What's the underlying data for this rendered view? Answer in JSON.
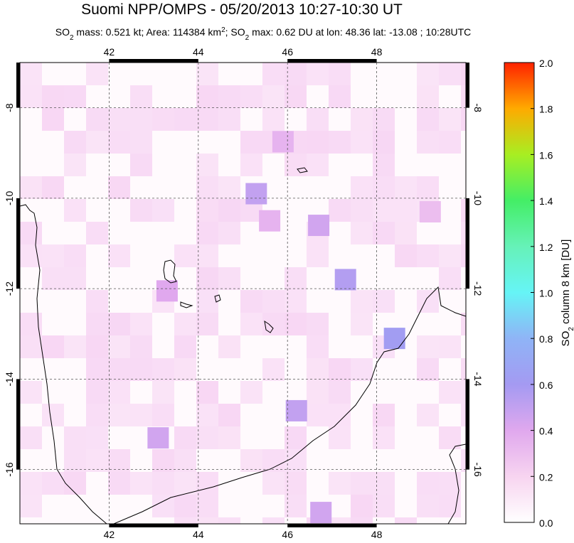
{
  "title": "Suomi NPP/OMPS - 05/20/2013 10:27-10:30 UT",
  "subtitle": [
    "SO",
    "2",
    " mass: 0.521 kt; Area: 114384 km",
    "2",
    "; SO",
    "2",
    " max: 0.62 DU at lon: 48.36 lat: -13.08 ; 10:28UTC"
  ],
  "map": {
    "xlim": [
      40,
      50
    ],
    "ylim": [
      -17.2,
      -7
    ],
    "xticks": [
      42,
      44,
      46,
      48
    ],
    "yticks": [
      -8,
      -10,
      -12,
      -14,
      -16
    ],
    "cells": [
      {
        "lon": 47.3,
        "lat": -11.8,
        "value": 0.55
      },
      {
        "lon": 48.4,
        "lat": -13.1,
        "value": 0.62
      },
      {
        "lon": 45.3,
        "lat": -9.9,
        "value": 0.5
      },
      {
        "lon": 46.7,
        "lat": -10.6,
        "value": 0.45
      },
      {
        "lon": 46.2,
        "lat": -14.7,
        "value": 0.5
      },
      {
        "lon": 43.1,
        "lat": -15.3,
        "value": 0.45
      },
      {
        "lon": 46.75,
        "lat": -16.95,
        "value": 0.45
      },
      {
        "lon": 43.3,
        "lat": -12.05,
        "value": 0.4
      },
      {
        "lon": 45.9,
        "lat": -8.75,
        "value": 0.35
      },
      {
        "lon": 45.6,
        "lat": -10.5,
        "value": 0.35
      },
      {
        "lon": 49.2,
        "lat": -10.3,
        "value": 0.3
      }
    ]
  },
  "colorbar": {
    "label": [
      "SO",
      "2",
      " column 8 km [DU]"
    ],
    "lim": [
      0,
      2
    ],
    "ticks": [
      {
        "value": 0,
        "label": "0.0"
      },
      0.2,
      0.4,
      0.6,
      0.8,
      {
        "value": 1,
        "label": "1.0"
      },
      1.2,
      1.4,
      1.6,
      1.8,
      {
        "value": 2,
        "label": "2.0"
      }
    ]
  }
}
